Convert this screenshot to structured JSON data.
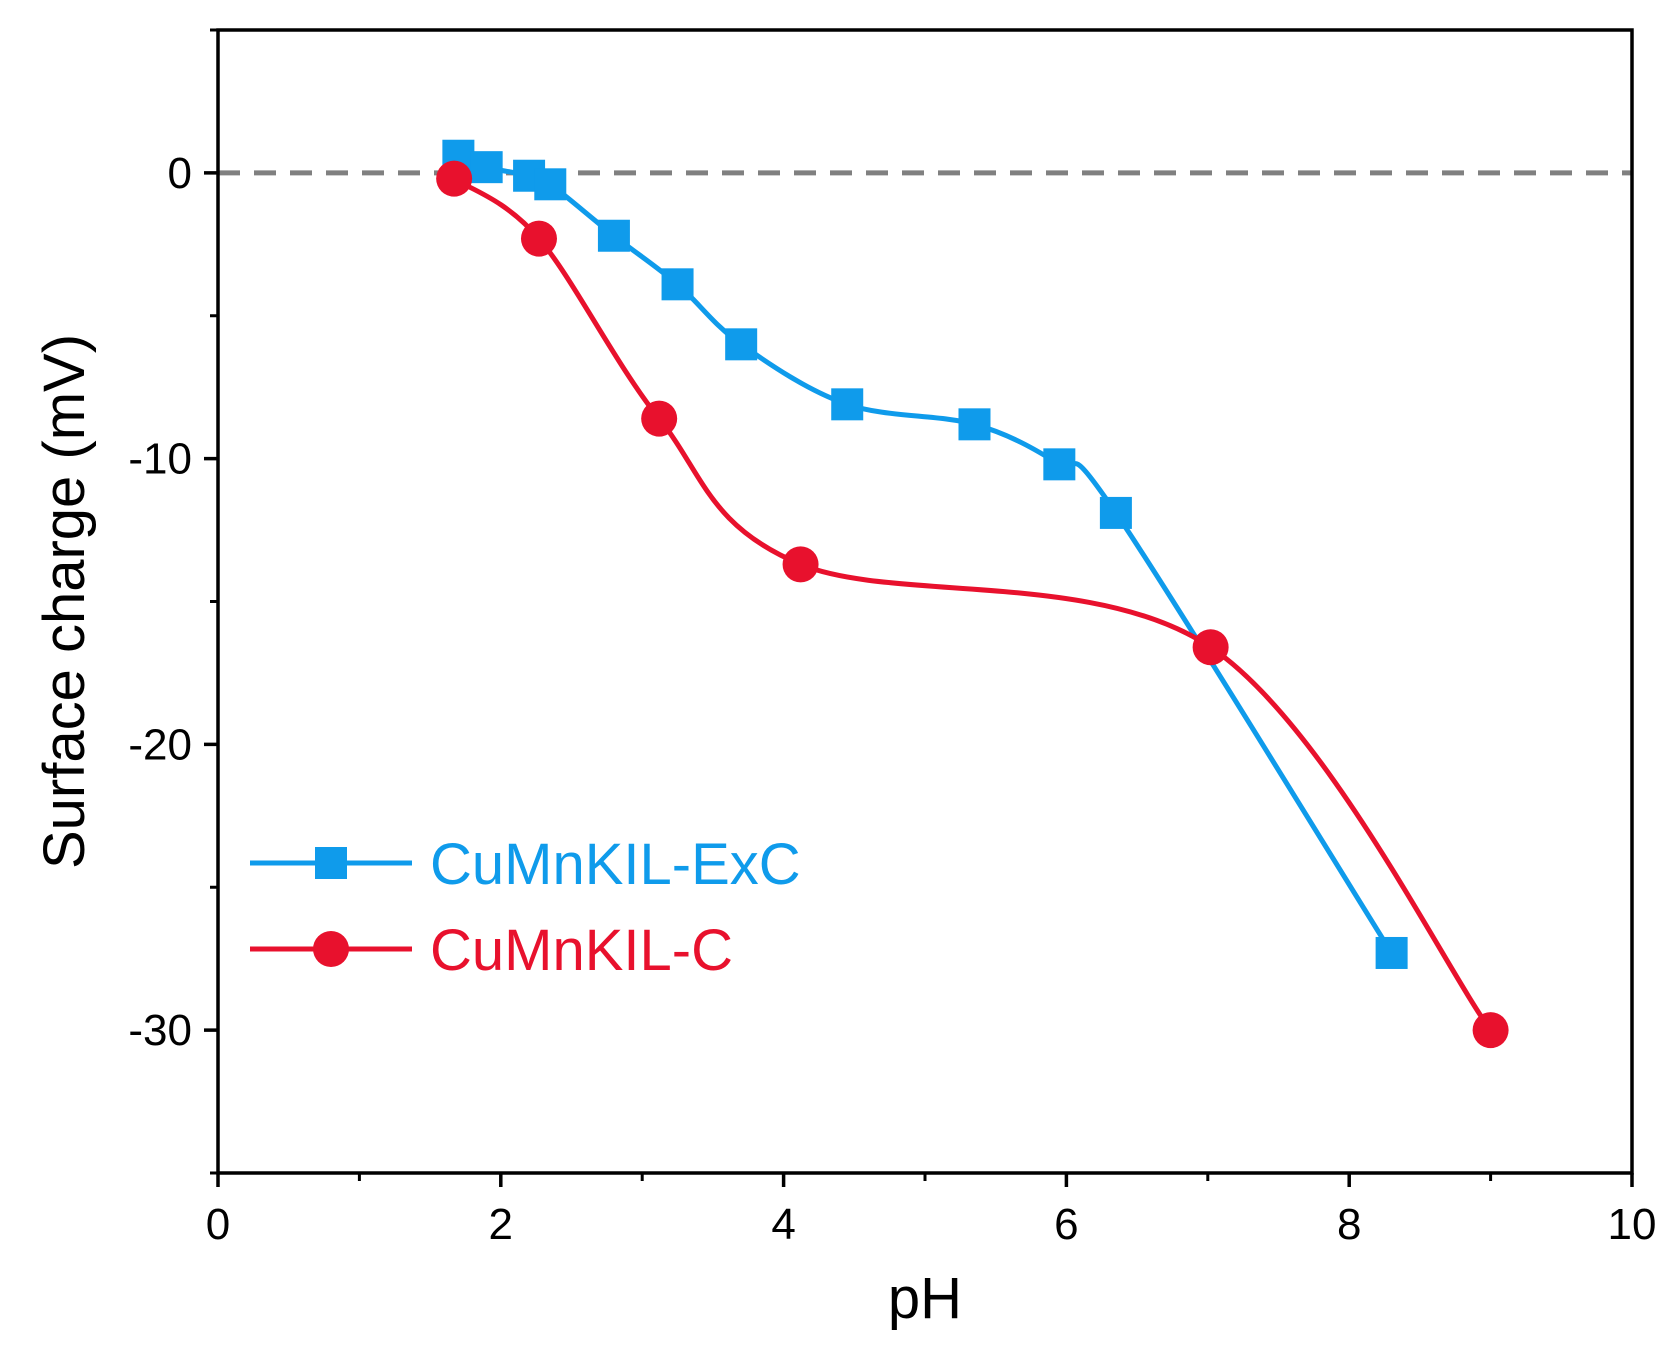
{
  "chart_data": {
    "type": "line",
    "xlabel": "pH",
    "ylabel": "Surface charge (mV)",
    "xlim": [
      0,
      10
    ],
    "ylim": [
      -35,
      5
    ],
    "xticks": [
      0,
      2,
      4,
      6,
      8,
      10
    ],
    "xtick_labels": [
      "0",
      "2",
      "4",
      "6",
      "8",
      "10"
    ],
    "xminor_ticks": [
      1,
      3,
      5,
      7,
      9
    ],
    "yticks": [
      0,
      -10,
      -20,
      -30
    ],
    "ytick_labels": [
      "0",
      "-10",
      "-20",
      "-30"
    ],
    "yminor_ticks": [
      5,
      -5,
      -15,
      -25,
      -35
    ],
    "reference_line": {
      "y": 0,
      "style": "dashed",
      "color": "#808080"
    },
    "grid": false,
    "legend_position": "bottom-left",
    "series": [
      {
        "name": "CuMnKIL-ExC",
        "color": "#0F9BEB",
        "marker": "square",
        "x": [
          1.7,
          1.9,
          2.2,
          2.35,
          2.8,
          3.25,
          3.7,
          4.45,
          5.35,
          5.95,
          6.35,
          8.3
        ],
        "y": [
          0.6,
          0.2,
          -0.1,
          -0.4,
          -2.2,
          -3.9,
          -6.0,
          -8.1,
          -8.8,
          -10.2,
          -11.9,
          -27.3
        ]
      },
      {
        "name": "CuMnKIL-C",
        "color": "#E8112D",
        "marker": "circle",
        "x": [
          1.67,
          2.27,
          3.12,
          4.12,
          7.02,
          9.0
        ],
        "y": [
          -0.2,
          -2.3,
          -8.6,
          -13.7,
          -16.6,
          -30.0
        ]
      }
    ]
  }
}
